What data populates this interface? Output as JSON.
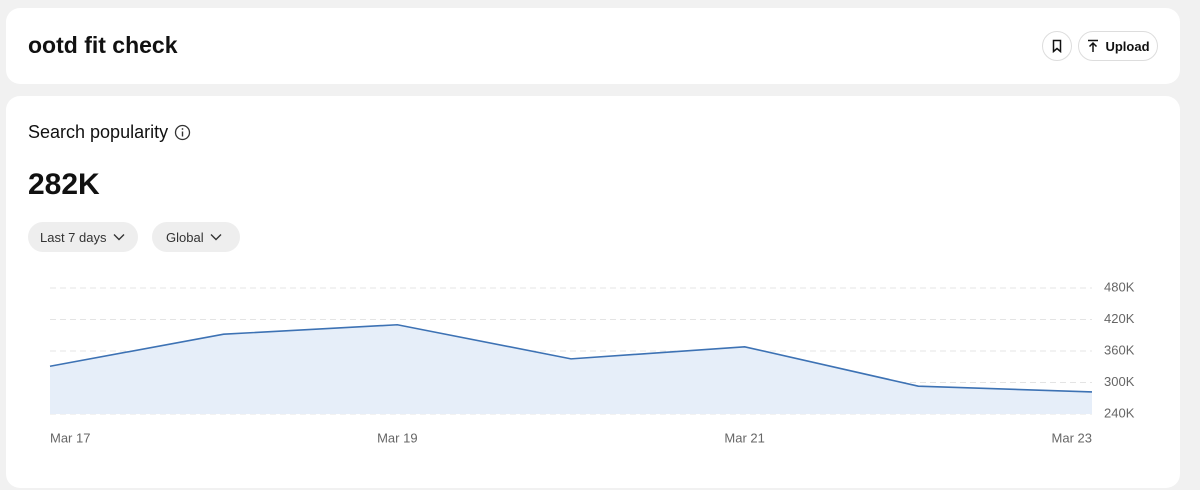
{
  "header": {
    "title": "ootd fit check",
    "upload": "Upload"
  },
  "card": {
    "title": "Search popularity",
    "value": "282K",
    "filters": [
      "Last 7 days",
      "Global"
    ]
  },
  "chart_data": {
    "type": "area",
    "categories": [
      "Mar 17",
      null,
      "Mar 19",
      null,
      "Mar 21",
      null,
      "Mar 23"
    ],
    "values": [
      331000,
      392000,
      410000,
      345000,
      368000,
      293000,
      282000
    ],
    "color": "#3d72b4",
    "fill": "#e6eef9",
    "ylim": [
      240000,
      480000
    ],
    "yticks": [
      {
        "value": 240000,
        "label": "240K"
      },
      {
        "value": 300000,
        "label": "300K"
      },
      {
        "value": 360000,
        "label": "360K"
      },
      {
        "value": 420000,
        "label": "420K"
      },
      {
        "value": 480000,
        "label": "480K"
      }
    ],
    "grid": true
  }
}
